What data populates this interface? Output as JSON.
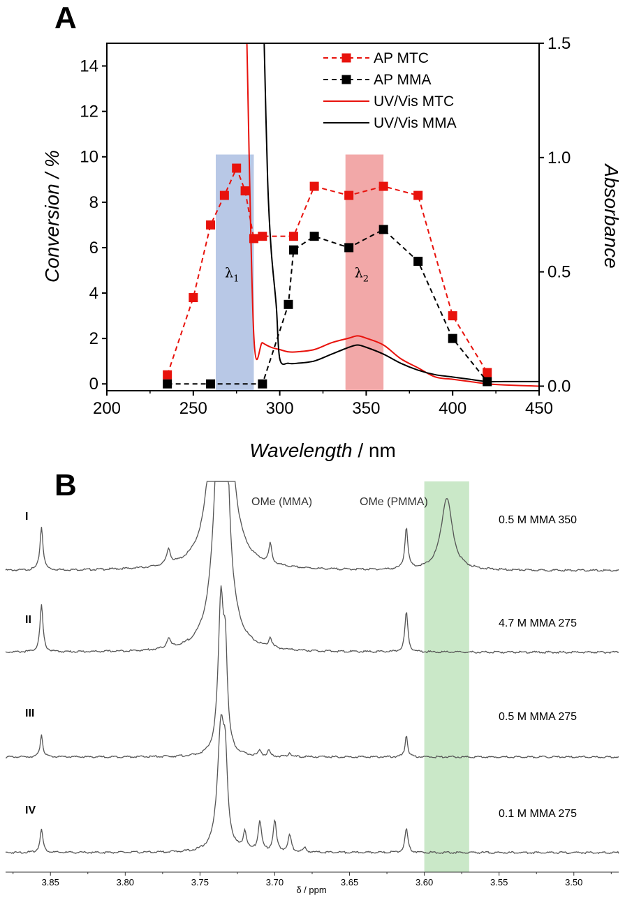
{
  "panels": {
    "a_label": "A",
    "b_label": "B"
  },
  "chart_data": [
    {
      "type": "line",
      "panel": "A",
      "xlabel_italic": "Wavelength",
      "xlabel_unit": " / nm",
      "ylabel": "Conversion / %",
      "y2label": "Absorbance",
      "xlim": [
        200,
        450
      ],
      "ylim": [
        -0.3,
        15
      ],
      "y2lim": [
        -0.02,
        1.5
      ],
      "x_ticks": [
        "200",
        "250",
        "300",
        "350",
        "400",
        "450"
      ],
      "y_ticks": [
        "0",
        "2",
        "4",
        "6",
        "8",
        "10",
        "12",
        "14"
      ],
      "y2_ticks": [
        "0.0",
        "0.5",
        "1.0",
        "1.5"
      ],
      "legend_position": "top-right",
      "colors": {
        "red": "#e8120c",
        "black": "#000000",
        "blue_band": "#b8c8e6",
        "red_band": "#f2a8a8"
      },
      "bands": [
        {
          "label": "λ",
          "subscript": "1",
          "x_range": [
            263,
            285
          ],
          "y_top": 10.1,
          "color": "#b8c8e6"
        },
        {
          "label": "λ",
          "subscript": "2",
          "x_range": [
            338,
            360
          ],
          "y_top": 10.1,
          "color": "#f2a8a8"
        }
      ],
      "series": [
        {
          "name": "AP MTC",
          "kind": "points",
          "axis": "left",
          "color": "#e8120c",
          "x": [
            235,
            250,
            260,
            268,
            275,
            280,
            285,
            290,
            308,
            320,
            340,
            360,
            380,
            400,
            420
          ],
          "y": [
            0.4,
            3.8,
            7.0,
            8.3,
            9.5,
            8.5,
            6.4,
            6.5,
            6.5,
            8.7,
            8.3,
            8.7,
            8.3,
            3.0,
            0.5
          ]
        },
        {
          "name": "AP MMA",
          "kind": "points",
          "axis": "left",
          "color": "#000000",
          "x": [
            235,
            260,
            290,
            305,
            308,
            320,
            340,
            360,
            380,
            400,
            420
          ],
          "y": [
            0.0,
            0.0,
            0.0,
            3.5,
            5.9,
            6.5,
            6.0,
            6.8,
            5.4,
            2.0,
            0.1
          ]
        },
        {
          "name": "UV/Vis MTC",
          "kind": "curve",
          "axis": "right",
          "color": "#e8120c",
          "x": [
            281,
            285,
            290,
            295,
            300,
            305,
            310,
            320,
            330,
            340,
            345,
            350,
            360,
            370,
            380,
            390,
            400,
            410,
            420,
            430,
            450
          ],
          "y": [
            1.5,
            0.22,
            0.19,
            0.17,
            0.16,
            0.15,
            0.15,
            0.16,
            0.19,
            0.21,
            0.22,
            0.21,
            0.18,
            0.12,
            0.08,
            0.04,
            0.03,
            0.02,
            0.01,
            0.005,
            0.0
          ]
        },
        {
          "name": "UV/Vis MMA",
          "kind": "curve",
          "axis": "right",
          "color": "#000000",
          "x": [
            291,
            293,
            295,
            298,
            300,
            305,
            310,
            320,
            330,
            340,
            345,
            350,
            360,
            370,
            380,
            390,
            400,
            410,
            420,
            430,
            450
          ],
          "y": [
            1.5,
            0.9,
            0.6,
            0.35,
            0.12,
            0.1,
            0.1,
            0.11,
            0.14,
            0.17,
            0.18,
            0.17,
            0.14,
            0.1,
            0.07,
            0.05,
            0.04,
            0.03,
            0.02,
            0.02,
            0.02
          ]
        }
      ]
    },
    {
      "type": "line",
      "panel": "B",
      "xlabel": "δ / ppm",
      "xlim": [
        3.88,
        3.47
      ],
      "x_ticks": [
        "3.85",
        "3.80",
        "3.75",
        "3.70",
        "3.65",
        "3.60",
        "3.55",
        "3.50"
      ],
      "highlight": {
        "x_range": [
          3.6,
          3.57
        ],
        "color": "#cae8c8"
      },
      "annotations": [
        "OMe (MMA)",
        "OMe (PMMA)"
      ],
      "series": [
        {
          "roman": "I",
          "name": "0.5 M MMA 350",
          "peaks_ppm": [
            3.856,
            3.771,
            3.703,
            3.612,
            3.585
          ]
        },
        {
          "roman": "II",
          "name": "4.7 M MMA 275",
          "peaks_ppm": [
            3.856,
            3.771,
            3.703,
            3.612
          ]
        },
        {
          "roman": "III",
          "name": "0.5 M MMA 275",
          "peaks_ppm": [
            3.856,
            3.71,
            3.704,
            3.612
          ]
        },
        {
          "roman": "IV",
          "name": "0.1 M MMA 275",
          "peaks_ppm": [
            3.856,
            3.72,
            3.71,
            3.7,
            3.69,
            3.612
          ]
        }
      ]
    }
  ]
}
